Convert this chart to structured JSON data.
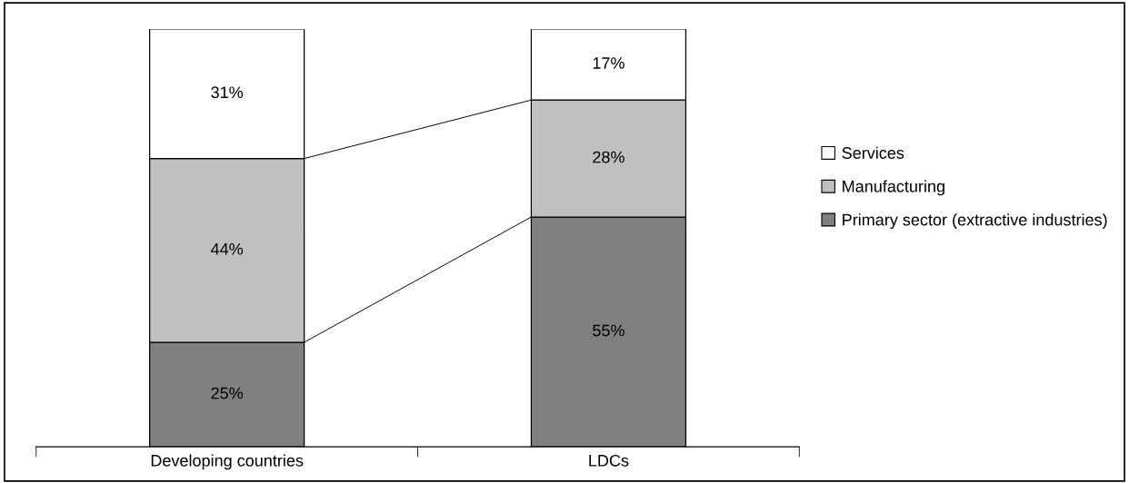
{
  "chart_data": {
    "type": "bar",
    "stacked": true,
    "categories": [
      "Developing countries",
      "LDCs"
    ],
    "series": [
      {
        "name": "Primary sector (extractive industries)",
        "color": "#808080",
        "values": [
          25,
          55
        ],
        "value_labels": [
          "25%",
          "55%"
        ]
      },
      {
        "name": "Manufacturing",
        "color": "#c0c0c0",
        "values": [
          44,
          28
        ],
        "value_labels": [
          "44%",
          "28%"
        ]
      },
      {
        "name": "Services",
        "color": "#ffffff",
        "values": [
          31,
          17
        ],
        "value_labels": [
          "31%",
          "17%"
        ]
      }
    ],
    "legend": "right",
    "tick_labels": "x"
  }
}
